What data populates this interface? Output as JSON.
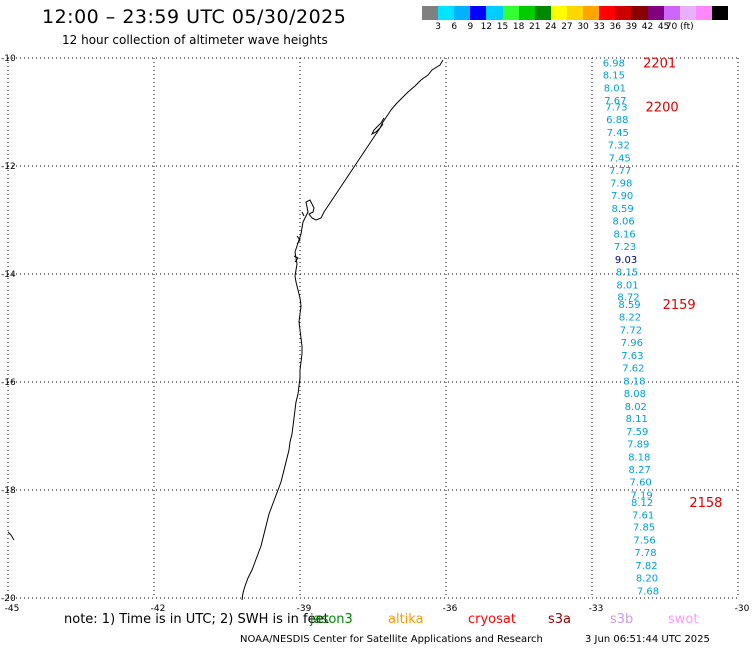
{
  "header": {
    "title": "12:00 – 23:59 UTC 05/30/2025",
    "subtitle": "12 hour collection of altimeter wave heights"
  },
  "colorbar": {
    "colors": [
      "#808080",
      "#00e5ff",
      "#00b2ff",
      "#0000ff",
      "#00ccff",
      "#33ff33",
      "#00cc00",
      "#008800",
      "#ffff00",
      "#ffd700",
      "#ffa500",
      "#ff0000",
      "#cc0000",
      "#880000",
      "#800080",
      "#cc66ff",
      "#e8b0ff",
      "#ff88ff",
      "#000000"
    ],
    "labels": [
      "3",
      "6",
      "9",
      "12",
      "15",
      "18",
      "21",
      "24",
      "27",
      "30",
      "33",
      "36",
      "39",
      "42",
      "45",
      "70 (ft)"
    ]
  },
  "map": {
    "lon_ticks": [
      "-45",
      "-42",
      "-39",
      "-36",
      "-33",
      "-30"
    ],
    "lat_ticks": [
      "-10",
      "-12",
      "-14",
      "-16",
      "-18",
      "-20"
    ],
    "lon_range": [
      -45,
      -30
    ],
    "lat_range": [
      -10,
      -20
    ]
  },
  "observations": [
    {
      "lon": -32.55,
      "lat": -10.08,
      "value": "6.98"
    },
    {
      "lon": -32.55,
      "lat": -10.31,
      "value": "8.15"
    },
    {
      "lon": -32.53,
      "lat": -10.55,
      "value": "8.01"
    },
    {
      "lon": -32.52,
      "lat": -10.78,
      "value": "7.67"
    },
    {
      "lon": -32.5,
      "lat": -10.9,
      "value": "7.73"
    },
    {
      "lon": -32.48,
      "lat": -11.13,
      "value": "6.88"
    },
    {
      "lon": -32.47,
      "lat": -11.37,
      "value": "7.45"
    },
    {
      "lon": -32.45,
      "lat": -11.6,
      "value": "7.32"
    },
    {
      "lon": -32.43,
      "lat": -11.84,
      "value": "7.45"
    },
    {
      "lon": -32.42,
      "lat": -12.07,
      "value": "7.77"
    },
    {
      "lon": -32.4,
      "lat": -12.31,
      "value": "7.98"
    },
    {
      "lon": -32.38,
      "lat": -12.54,
      "value": "7.90"
    },
    {
      "lon": -32.37,
      "lat": -12.78,
      "value": "8.59"
    },
    {
      "lon": -32.35,
      "lat": -13.01,
      "value": "8.06"
    },
    {
      "lon": -32.33,
      "lat": -13.25,
      "value": "8.16"
    },
    {
      "lon": -32.32,
      "lat": -13.48,
      "value": "7.23"
    },
    {
      "lon": -32.3,
      "lat": -13.72,
      "value": "9.03"
    },
    {
      "lon": -32.28,
      "lat": -13.95,
      "value": "8.15"
    },
    {
      "lon": -32.27,
      "lat": -14.19,
      "value": "8.01"
    },
    {
      "lon": -32.25,
      "lat": -14.42,
      "value": "8.72"
    },
    {
      "lon": -32.23,
      "lat": -14.56,
      "value": "8.59"
    },
    {
      "lon": -32.22,
      "lat": -14.79,
      "value": "8.22"
    },
    {
      "lon": -32.2,
      "lat": -15.03,
      "value": "7.72"
    },
    {
      "lon": -32.18,
      "lat": -15.26,
      "value": "7.96"
    },
    {
      "lon": -32.17,
      "lat": -15.5,
      "value": "7.63"
    },
    {
      "lon": -32.15,
      "lat": -15.73,
      "value": "7.62"
    },
    {
      "lon": -32.13,
      "lat": -15.97,
      "value": "8.18"
    },
    {
      "lon": -32.12,
      "lat": -16.2,
      "value": "8.08"
    },
    {
      "lon": -32.1,
      "lat": -16.44,
      "value": "8.02"
    },
    {
      "lon": -32.08,
      "lat": -16.67,
      "value": "8.11"
    },
    {
      "lon": -32.07,
      "lat": -16.91,
      "value": "7.59"
    },
    {
      "lon": -32.05,
      "lat": -17.14,
      "value": "7.89"
    },
    {
      "lon": -32.03,
      "lat": -17.38,
      "value": "8.18"
    },
    {
      "lon": -32.02,
      "lat": -17.61,
      "value": "8.27"
    },
    {
      "lon": -32.0,
      "lat": -17.84,
      "value": "7.60"
    },
    {
      "lon": -31.98,
      "lat": -18.08,
      "value": "7.19"
    },
    {
      "lon": -31.97,
      "lat": -18.22,
      "value": "8.12"
    },
    {
      "lon": -31.95,
      "lat": -18.45,
      "value": "7.61"
    },
    {
      "lon": -31.93,
      "lat": -18.68,
      "value": "7.85"
    },
    {
      "lon": -31.92,
      "lat": -18.92,
      "value": "7.56"
    },
    {
      "lon": -31.9,
      "lat": -19.15,
      "value": "7.78"
    },
    {
      "lon": -31.88,
      "lat": -19.39,
      "value": "7.82"
    },
    {
      "lon": -31.87,
      "lat": -19.62,
      "value": "8.20"
    },
    {
      "lon": -31.85,
      "lat": -19.86,
      "value": "7.68"
    }
  ],
  "time_labels": [
    {
      "lon": -31.95,
      "lat": -10.08,
      "value": "2201"
    },
    {
      "lon": -31.9,
      "lat": -10.9,
      "value": "2200"
    },
    {
      "lon": -31.55,
      "lat": -14.56,
      "value": "2159"
    },
    {
      "lon": -31.0,
      "lat": -18.22,
      "value": "2158"
    }
  ],
  "colors": {
    "swh": "#00a0d8",
    "swh_high": "#00008b",
    "time": "#dd0000",
    "grid": "#000000"
  },
  "legend": {
    "note": "note: 1) Time is in UTC; 2) SWH is in feet",
    "satellites": [
      {
        "name": "jason3",
        "color": "#008800"
      },
      {
        "name": "altika",
        "color": "#ff9900"
      },
      {
        "name": "cryosat",
        "color": "#ff0000"
      },
      {
        "name": "s3a",
        "color": "#990000"
      },
      {
        "name": "s3b",
        "color": "#cc99ee"
      },
      {
        "name": "swot",
        "color": "#ff99ff"
      }
    ]
  },
  "footer": {
    "org": "NOAA/NESDIS Center for Satellite Applications and Research",
    "timestamp": "3 Jun 06:51:44 UTC 2025"
  }
}
